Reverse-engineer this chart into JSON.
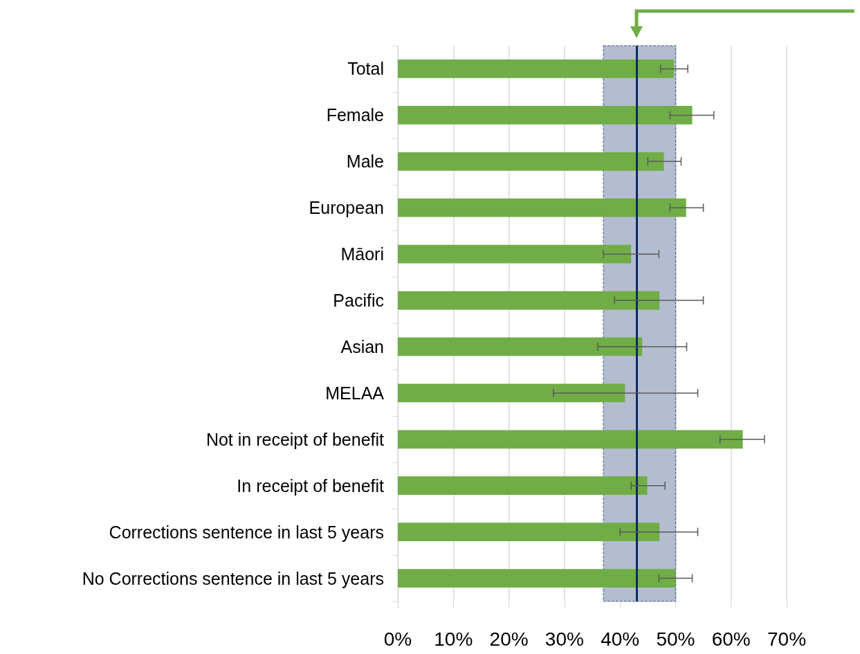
{
  "chart_data": {
    "type": "bar",
    "orientation": "horizontal",
    "categories": [
      "Total",
      "Female",
      "Male",
      "European",
      "Māori",
      "Pacific",
      "Asian",
      "MELAA",
      "Not in receipt of benefit",
      "In receipt of benefit",
      "Corrections sentence in last 5 years",
      "No Corrections sentence in last 5 years"
    ],
    "values": [
      49.7,
      53,
      47.9,
      51.9,
      42,
      47.1,
      44,
      40.9,
      62.1,
      44.9,
      47.1,
      50
    ],
    "errors": [
      [
        47.3,
        52.2
      ],
      [
        49,
        56.9
      ],
      [
        45,
        51
      ],
      [
        49,
        55
      ],
      [
        37,
        47
      ],
      [
        39,
        55
      ],
      [
        36,
        52
      ],
      [
        28,
        54
      ],
      [
        58,
        66
      ],
      [
        42,
        48.1
      ],
      [
        40,
        54
      ],
      [
        47,
        53
      ]
    ],
    "color": "#70ad47",
    "xlim": [
      0,
      70
    ],
    "xticks": [
      {
        "value": 0,
        "label": "0%"
      },
      {
        "value": 10,
        "label": "10%"
      },
      {
        "value": 20,
        "label": "20%"
      },
      {
        "value": 30,
        "label": "30%"
      },
      {
        "value": 40,
        "label": "40%"
      },
      {
        "value": 50,
        "label": "50%"
      },
      {
        "value": 60,
        "label": "60%"
      },
      {
        "value": 70,
        "label": "70%"
      }
    ],
    "grid": "x",
    "ref_lines": [
      {
        "axis": "x",
        "value": 43,
        "color": "#0c2a5c"
      }
    ],
    "bands": [
      {
        "axis": "x",
        "from": 37,
        "to": 50,
        "color": "#b4bcd0"
      }
    ]
  }
}
